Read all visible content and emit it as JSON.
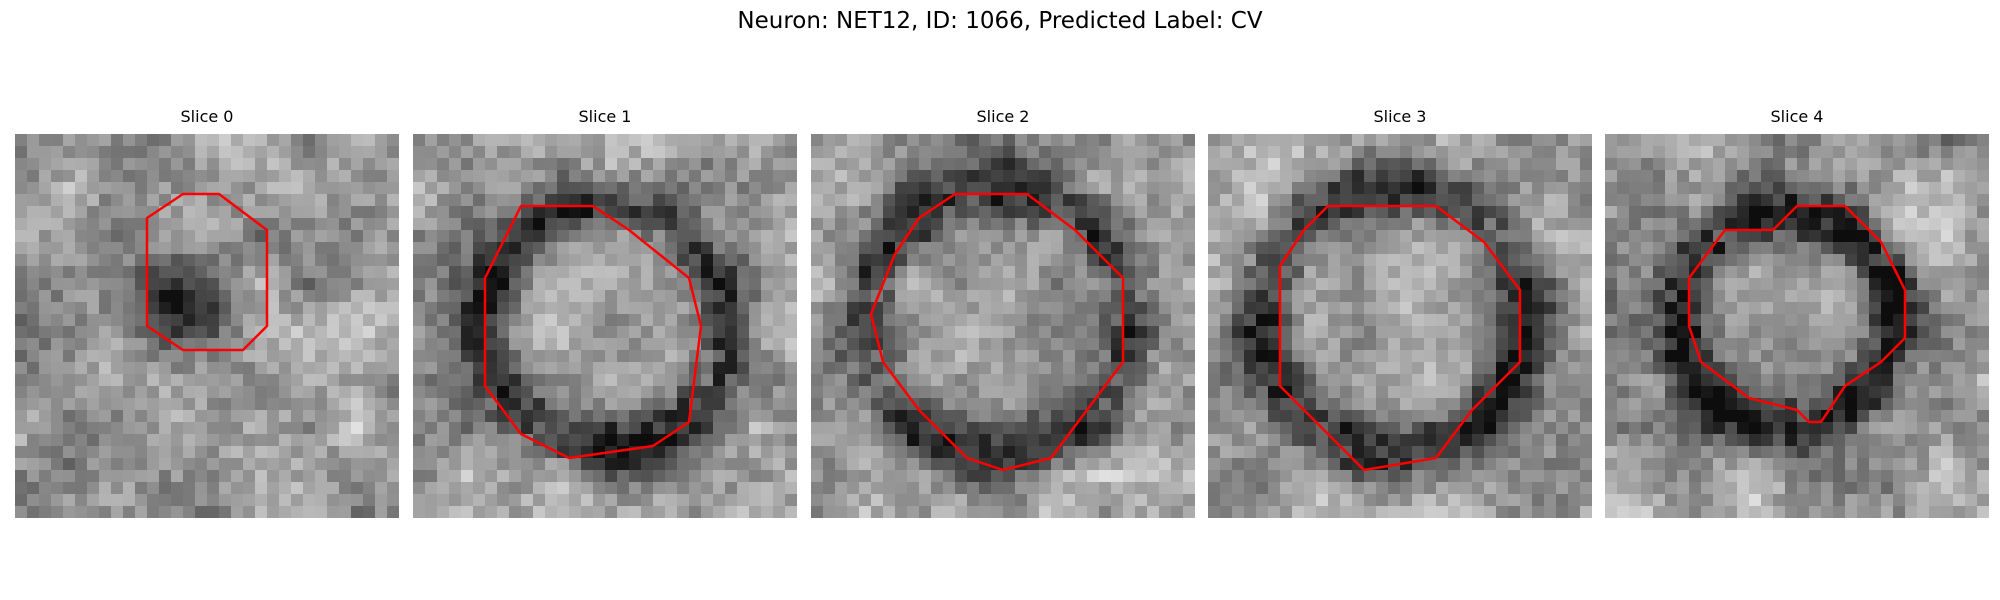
{
  "figure": {
    "title": "Neuron: NET12, ID: 1066, Predicted Label: CV",
    "contour_color": "#ff0000",
    "colormap": "grayscale"
  },
  "panels": [
    {
      "title": "Slice 0"
    },
    {
      "title": "Slice 1"
    },
    {
      "title": "Slice 2"
    },
    {
      "title": "Slice 3"
    },
    {
      "title": "Slice 4"
    }
  ]
}
